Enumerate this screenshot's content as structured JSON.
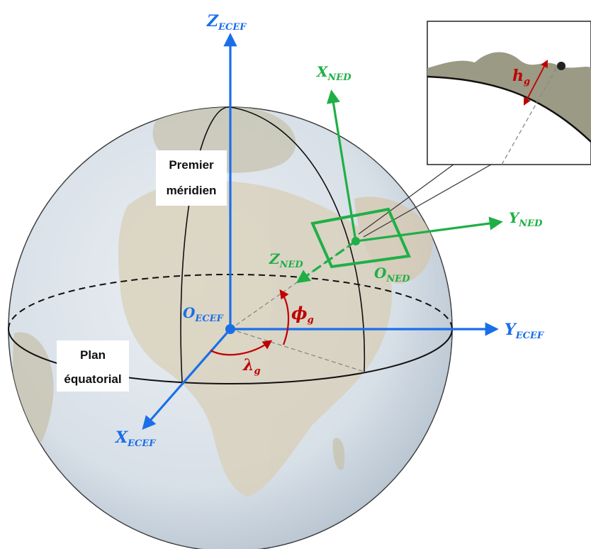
{
  "colors": {
    "ecef_axis": "#1a6fe8",
    "ned_axis": "#1faf46",
    "angle": "#c00000",
    "ocean": "#a9bccf",
    "land": "#b9ad8d",
    "grid": "#111111"
  },
  "axes_ecef": {
    "z": {
      "main": "Z",
      "sub": "ECEF"
    },
    "y": {
      "main": "Y",
      "sub": "ECEF"
    },
    "x": {
      "main": "X",
      "sub": "ECEF"
    },
    "origin": {
      "main": "O",
      "sub": "ECEF"
    }
  },
  "axes_ned": {
    "x": {
      "main": "X",
      "sub": "NED"
    },
    "y": {
      "main": "Y",
      "sub": "NED"
    },
    "z": {
      "main": "Z",
      "sub": "NED"
    },
    "origin": {
      "main": "O",
      "sub": "NED"
    }
  },
  "angles": {
    "latitude": {
      "main": "ϕ",
      "sub": "g"
    },
    "longitude": {
      "main": "λ",
      "sub": "g"
    },
    "height": {
      "main": "h",
      "sub": "g"
    }
  },
  "labels": {
    "prime_meridian": [
      "Premier",
      "méridien"
    ],
    "equatorial_plane": [
      "Plan",
      "équatorial"
    ]
  },
  "icons": [
    "globe-icon",
    "terrain-inset-icon"
  ]
}
